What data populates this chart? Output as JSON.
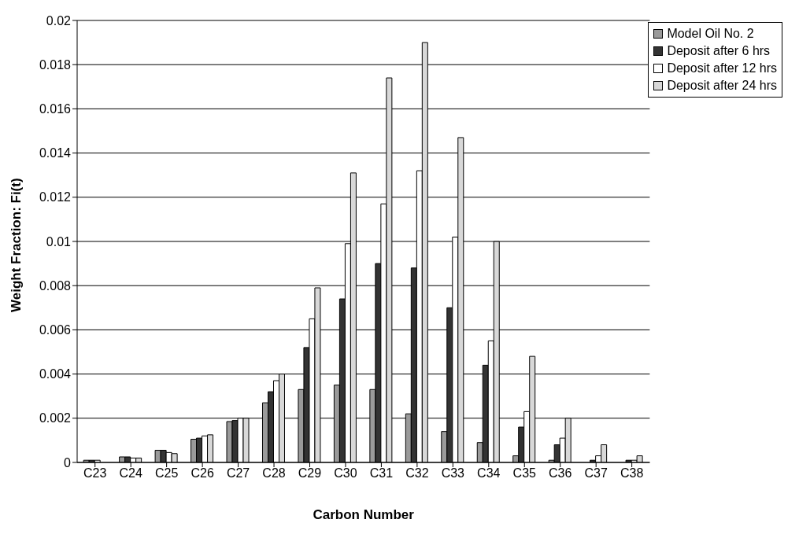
{
  "chart_data": {
    "type": "bar",
    "xlabel": "Carbon Number",
    "ylabel": "Weight Fraction: Fi(t)",
    "categories": [
      "C23",
      "C24",
      "C25",
      "C26",
      "C27",
      "C28",
      "C29",
      "C30",
      "C31",
      "C32",
      "C33",
      "C34",
      "C35",
      "C36",
      "C37",
      "C38"
    ],
    "series": [
      {
        "name": "Model Oil No. 2",
        "color": "#9a9a9a",
        "values": [
          0.0001,
          0.00025,
          0.00055,
          0.00105,
          0.00185,
          0.0027,
          0.0033,
          0.0035,
          0.0033,
          0.0022,
          0.0014,
          0.0009,
          0.0003,
          0.0001,
          0,
          0
        ]
      },
      {
        "name": "Deposit after 6 hrs",
        "color": "#333333",
        "values": [
          0.0001,
          0.00025,
          0.00055,
          0.0011,
          0.0019,
          0.0032,
          0.0052,
          0.0074,
          0.009,
          0.0088,
          0.007,
          0.0044,
          0.0016,
          0.0008,
          0.0001,
          0.0001
        ]
      },
      {
        "name": "Deposit after 12 hrs",
        "color": "#ffffff",
        "values": [
          0.0001,
          0.0002,
          0.00045,
          0.0012,
          0.002,
          0.0037,
          0.0065,
          0.0099,
          0.0117,
          0.0132,
          0.0102,
          0.0055,
          0.0023,
          0.0011,
          0.0003,
          0.0001
        ]
      },
      {
        "name": "Deposit after 24 hrs",
        "color": "#d8d8d8",
        "values": [
          0,
          0.0002,
          0.0004,
          0.00125,
          0.002,
          0.004,
          0.0079,
          0.0131,
          0.0174,
          0.019,
          0.0147,
          0.01,
          0.0048,
          0.002,
          0.0008,
          0.0003
        ]
      }
    ],
    "ylim": [
      0,
      0.02
    ],
    "yticks": [
      0,
      0.002,
      0.004,
      0.006,
      0.008,
      0.01,
      0.012,
      0.014,
      0.016,
      0.018,
      0.02
    ],
    "grid": "y",
    "legend": "top right"
  }
}
